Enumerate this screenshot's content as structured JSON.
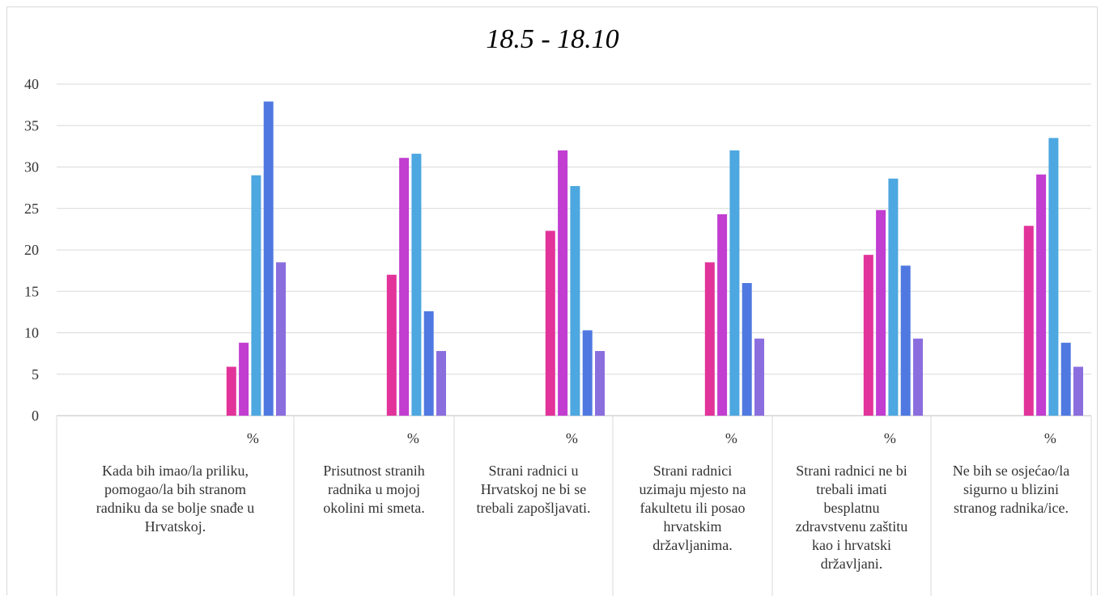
{
  "chart_data": {
    "type": "bar",
    "title": "18.5 - 18.10",
    "ylim": [
      0,
      40
    ],
    "yticks": [
      0,
      5,
      10,
      15,
      20,
      25,
      30,
      35,
      40
    ],
    "grid": true,
    "legend": "none",
    "unit_label": "%",
    "categories": [
      [
        "Kada bih imao/la priliku,",
        "pomogao/la bih stranom",
        "radniku da se bolje snađe u",
        "Hrvatskoj."
      ],
      [
        "Prisutnost stranih",
        "radnika u mojoj",
        "okolini mi smeta."
      ],
      [
        "Strani radnici u",
        "Hrvatskoj ne bi se",
        "trebali zapošljavati."
      ],
      [
        "Strani radnici",
        "uzimaju mjesto na",
        "fakultetu ili posao",
        "hrvatskim",
        "državljanima."
      ],
      [
        "Strani radnici ne bi",
        "trebali  imati",
        "besplatnu",
        "zdravstvenu zaštitu",
        "kao i hrvatski",
        "državljani."
      ],
      [
        "Ne bih se osjećao/la",
        "sigurno u blizini",
        "stranog radnika/ice."
      ]
    ],
    "series": [
      {
        "color": "#e2339a",
        "values": [
          5.9,
          17.0,
          22.3,
          18.5,
          19.4,
          22.9
        ]
      },
      {
        "color": "#c13ed1",
        "values": [
          8.8,
          31.1,
          32.0,
          24.3,
          24.8,
          29.1
        ]
      },
      {
        "color": "#4da7e0",
        "values": [
          29.0,
          31.6,
          27.7,
          32.0,
          28.6,
          33.5
        ]
      },
      {
        "color": "#4f79e0",
        "values": [
          37.9,
          12.6,
          10.3,
          16.0,
          18.1,
          8.8
        ]
      },
      {
        "color": "#8b6ede",
        "values": [
          18.5,
          7.8,
          7.8,
          9.3,
          9.3,
          5.9
        ]
      }
    ]
  }
}
